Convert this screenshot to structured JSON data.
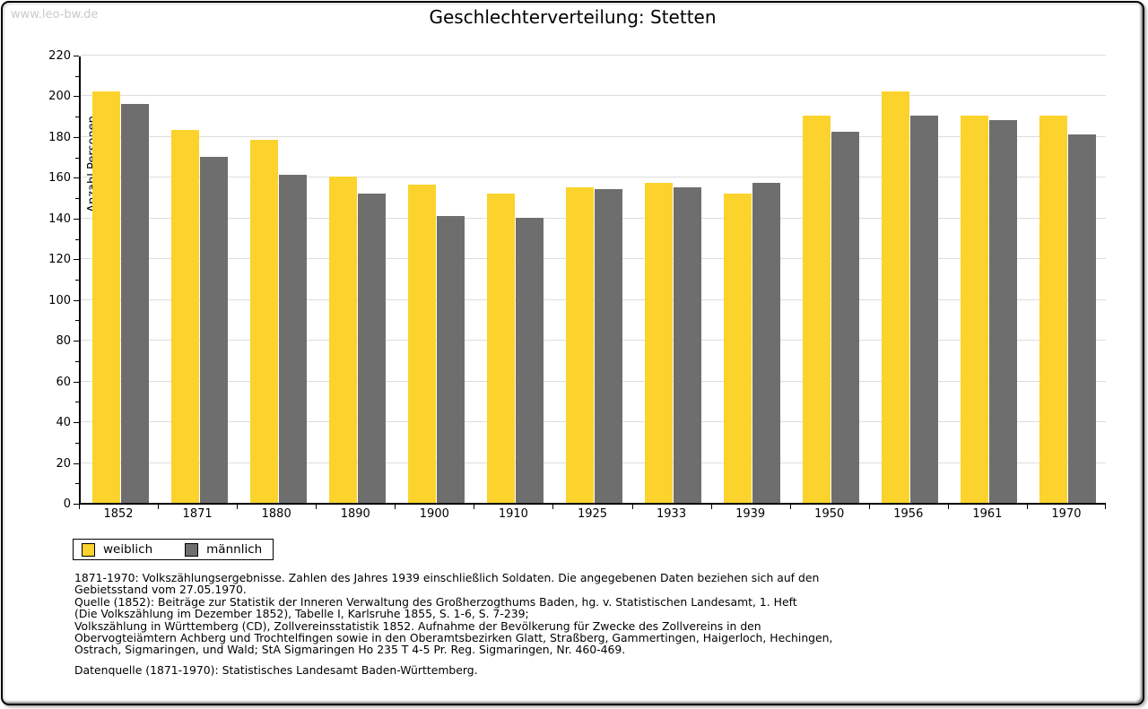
{
  "watermark": "www.leo-bw.de",
  "title": "Geschlechterverteilung: Stetten",
  "colors": {
    "weiblich": "#FCD32C",
    "maennlich": "#6E6E6E",
    "grid": "#DDDDDD",
    "watermark": "#C9C9C9"
  },
  "chart_data": {
    "type": "bar",
    "title": "Geschlechterverteilung: Stetten",
    "xlabel": "",
    "ylabel": "Anzahl Personen",
    "ylim": [
      0,
      220
    ],
    "ytick_step": 20,
    "ytick_minor_step": 10,
    "grid": true,
    "legend_position": "bottom-left",
    "categories": [
      "1852",
      "1871",
      "1880",
      "1890",
      "1900",
      "1910",
      "1925",
      "1933",
      "1939",
      "1950",
      "1956",
      "1961",
      "1970"
    ],
    "series": [
      {
        "name": "weiblich",
        "color": "#FCD32C",
        "values": [
          202,
          183,
          178,
          160,
          156,
          152,
          155,
          157,
          152,
          190,
          202,
          190,
          190
        ]
      },
      {
        "name": "männlich",
        "color": "#6E6E6E",
        "values": [
          196,
          170,
          161,
          152,
          141,
          140,
          154,
          155,
          157,
          182,
          190,
          188,
          181
        ]
      }
    ]
  },
  "legend": {
    "items": [
      {
        "label": "weiblich",
        "color": "#FCD32C"
      },
      {
        "label": "männlich",
        "color": "#6E6E6E"
      }
    ]
  },
  "footnotes": {
    "source_lines": [
      "1871-1970: Volkszählungsergebnisse. Zahlen des Jahres 1939 einschließlich Soldaten. Die angegebenen Daten beziehen sich auf den",
      "Gebietsstand vom 27.05.1970.",
      "Quelle (1852): Beiträge zur Statistik der Inneren Verwaltung des Großherzogthums Baden, hg. v. Statistischen Landesamt, 1. Heft",
      "(Die Volkszählung im Dezember 1852), Tabelle I, Karlsruhe 1855, S. 1-6, S. 7-239;",
      "Volkszählung in Württemberg (CD), Zollvereinsstatistik 1852. Aufnahme der Bevölkerung für Zwecke des Zollvereins in den",
      "Obervogteiämtern Achberg und Trochtelfingen sowie in den Oberamtsbezirken Glatt, Straßberg, Gammertingen, Haigerloch, Hechingen,",
      "Ostrach, Sigmaringen, und Wald; StA Sigmaringen Ho 235 T 4-5 Pr. Reg. Sigmaringen, Nr. 460-469."
    ],
    "datasource": "Datenquelle (1871-1970): Statistisches Landesamt Baden-Württemberg."
  }
}
